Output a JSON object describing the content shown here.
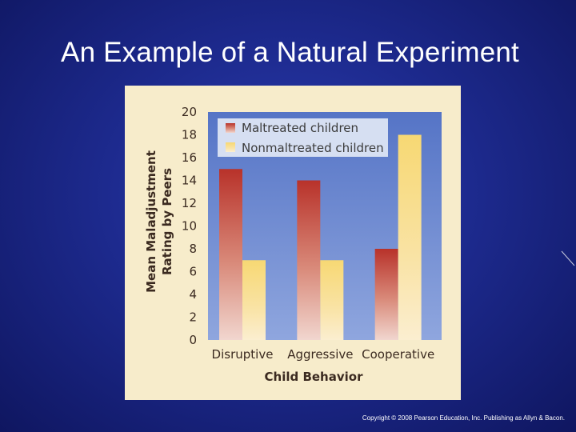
{
  "slide": {
    "title": "An Example of a Natural Experiment",
    "copyright": "Copyright © 2008 Pearson Education, Inc. Publishing as Allyn & Bacon."
  },
  "chart_data": {
    "type": "bar",
    "categories": [
      "Disruptive",
      "Aggressive",
      "Cooperative"
    ],
    "series": [
      {
        "name": "Maltreated children",
        "values": [
          15,
          14,
          8
        ],
        "color": "#c0392b"
      },
      {
        "name": "Nonmaltreated children",
        "values": [
          7,
          7,
          18
        ],
        "color": "#f6d77a"
      }
    ],
    "xlabel": "Child Behavior",
    "ylabel_line1": "Mean Maladjustment",
    "ylabel_line2": "Rating by Peers",
    "ylim": [
      0,
      20
    ],
    "yticks": [
      0,
      2,
      4,
      6,
      8,
      10,
      12,
      14,
      16,
      18,
      20
    ],
    "legend": "top-left",
    "grid": false,
    "colors": {
      "plot_bg": "#5b79c9",
      "panel_bg": "#f7eccb",
      "legend_bg": "#d6dff2"
    }
  }
}
